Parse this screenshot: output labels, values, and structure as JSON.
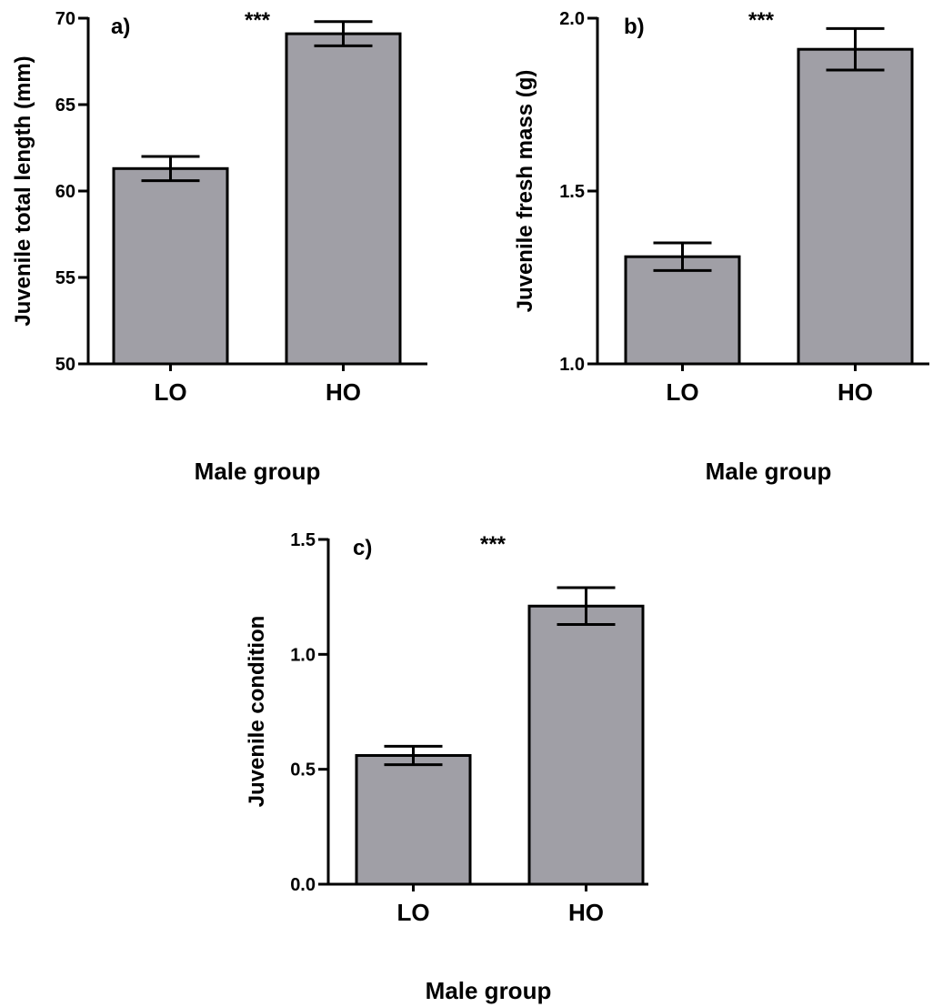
{
  "colors": {
    "bar": "#a09fa6",
    "stroke": "#000000",
    "background": "#ffffff"
  },
  "chart_data": [
    {
      "type": "bar",
      "panel": "a)",
      "significance": "***",
      "categories": [
        "LO",
        "HO"
      ],
      "values": [
        61.3,
        69.1
      ],
      "errors": [
        0.7,
        0.7
      ],
      "xlabel": "Male group",
      "ylabel": "Juvenile total length (mm)",
      "ylim": [
        50,
        70
      ],
      "yticks": [
        50,
        55,
        60,
        65,
        70
      ],
      "ytick_labels": [
        "50",
        "55",
        "60",
        "65",
        "70"
      ],
      "grid": false
    },
    {
      "type": "bar",
      "panel": "b)",
      "significance": "***",
      "categories": [
        "LO",
        "HO"
      ],
      "values": [
        1.31,
        1.91
      ],
      "errors": [
        0.04,
        0.06
      ],
      "xlabel": "Male group",
      "ylabel": "Juvenile fresh mass (g)",
      "ylim": [
        1.0,
        2.0
      ],
      "yticks": [
        1.0,
        1.5,
        2.0
      ],
      "ytick_labels": [
        "1.0",
        "1.5",
        "2.0"
      ],
      "grid": false
    },
    {
      "type": "bar",
      "panel": "c)",
      "significance": "***",
      "categories": [
        "LO",
        "HO"
      ],
      "values": [
        0.56,
        1.21
      ],
      "errors": [
        0.04,
        0.08
      ],
      "xlabel": "Male group",
      "ylabel": "Juvenile condition",
      "ylim": [
        0.0,
        1.5
      ],
      "yticks": [
        0.0,
        0.5,
        1.0,
        1.5
      ],
      "ytick_labels": [
        "0.0",
        "0.5",
        "1.0",
        "1.5"
      ],
      "grid": false
    }
  ]
}
